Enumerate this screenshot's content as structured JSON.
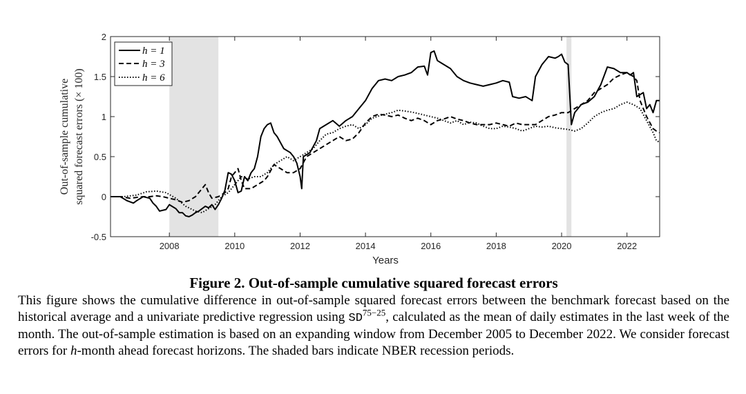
{
  "chart_data": {
    "type": "line",
    "title": "",
    "xlabel": "Years",
    "ylabel_line1": "Out-of-sample cumulative",
    "ylabel_line2": "squared forecast errors (× 100)",
    "xlim": [
      2006.2,
      2023.0
    ],
    "ylim": [
      -0.5,
      2.0
    ],
    "xticks": [
      2008,
      2010,
      2012,
      2014,
      2016,
      2018,
      2020,
      2022
    ],
    "yticks": [
      -0.5,
      0,
      0.5,
      1,
      1.5,
      2
    ],
    "ytick_labels": [
      "-0.5",
      "0",
      "0.5",
      "1",
      "1.5",
      "2"
    ],
    "legend_position": "top-left",
    "recessions": [
      [
        2008.0,
        2009.5
      ],
      [
        2020.15,
        2020.3
      ]
    ],
    "series": [
      {
        "name": "h = 1",
        "style": "solid",
        "points": [
          [
            2006.2,
            0.0
          ],
          [
            2006.5,
            0.0
          ],
          [
            2006.7,
            -0.05
          ],
          [
            2006.9,
            -0.08
          ],
          [
            2007.0,
            -0.05
          ],
          [
            2007.2,
            0.0
          ],
          [
            2007.4,
            -0.02
          ],
          [
            2007.5,
            -0.08
          ],
          [
            2007.6,
            -0.12
          ],
          [
            2007.7,
            -0.18
          ],
          [
            2007.9,
            -0.16
          ],
          [
            2008.0,
            -0.1
          ],
          [
            2008.2,
            -0.15
          ],
          [
            2008.3,
            -0.2
          ],
          [
            2008.4,
            -0.2
          ],
          [
            2008.5,
            -0.24
          ],
          [
            2008.6,
            -0.25
          ],
          [
            2008.7,
            -0.23
          ],
          [
            2008.8,
            -0.2
          ],
          [
            2008.9,
            -0.18
          ],
          [
            2009.0,
            -0.15
          ],
          [
            2009.1,
            -0.12
          ],
          [
            2009.2,
            -0.14
          ],
          [
            2009.3,
            -0.1
          ],
          [
            2009.4,
            -0.16
          ],
          [
            2009.5,
            -0.1
          ],
          [
            2009.6,
            -0.02
          ],
          [
            2009.7,
            0.08
          ],
          [
            2009.8,
            0.3
          ],
          [
            2009.9,
            0.28
          ],
          [
            2010.0,
            0.2
          ],
          [
            2010.1,
            0.05
          ],
          [
            2010.2,
            0.07
          ],
          [
            2010.3,
            0.25
          ],
          [
            2010.4,
            0.2
          ],
          [
            2010.5,
            0.3
          ],
          [
            2010.6,
            0.35
          ],
          [
            2010.7,
            0.5
          ],
          [
            2010.8,
            0.75
          ],
          [
            2010.9,
            0.85
          ],
          [
            2011.0,
            0.9
          ],
          [
            2011.1,
            0.92
          ],
          [
            2011.2,
            0.8
          ],
          [
            2011.3,
            0.75
          ],
          [
            2011.5,
            0.6
          ],
          [
            2011.7,
            0.55
          ],
          [
            2011.8,
            0.5
          ],
          [
            2011.9,
            0.42
          ],
          [
            2012.0,
            0.25
          ],
          [
            2012.05,
            0.1
          ],
          [
            2012.1,
            0.5
          ],
          [
            2012.3,
            0.55
          ],
          [
            2012.5,
            0.7
          ],
          [
            2012.6,
            0.85
          ],
          [
            2012.8,
            0.9
          ],
          [
            2013.0,
            0.95
          ],
          [
            2013.2,
            0.88
          ],
          [
            2013.4,
            0.95
          ],
          [
            2013.6,
            1.0
          ],
          [
            2013.8,
            1.1
          ],
          [
            2014.0,
            1.2
          ],
          [
            2014.2,
            1.35
          ],
          [
            2014.4,
            1.45
          ],
          [
            2014.6,
            1.47
          ],
          [
            2014.8,
            1.45
          ],
          [
            2015.0,
            1.5
          ],
          [
            2015.2,
            1.52
          ],
          [
            2015.4,
            1.55
          ],
          [
            2015.6,
            1.62
          ],
          [
            2015.8,
            1.63
          ],
          [
            2015.9,
            1.52
          ],
          [
            2016.0,
            1.8
          ],
          [
            2016.1,
            1.82
          ],
          [
            2016.2,
            1.7
          ],
          [
            2016.4,
            1.65
          ],
          [
            2016.6,
            1.6
          ],
          [
            2016.8,
            1.5
          ],
          [
            2017.0,
            1.45
          ],
          [
            2017.2,
            1.42
          ],
          [
            2017.4,
            1.4
          ],
          [
            2017.6,
            1.38
          ],
          [
            2017.8,
            1.4
          ],
          [
            2018.0,
            1.42
          ],
          [
            2018.2,
            1.45
          ],
          [
            2018.4,
            1.43
          ],
          [
            2018.5,
            1.25
          ],
          [
            2018.7,
            1.23
          ],
          [
            2018.9,
            1.25
          ],
          [
            2019.1,
            1.2
          ],
          [
            2019.2,
            1.5
          ],
          [
            2019.4,
            1.65
          ],
          [
            2019.6,
            1.75
          ],
          [
            2019.8,
            1.73
          ],
          [
            2019.9,
            1.75
          ],
          [
            2020.0,
            1.78
          ],
          [
            2020.1,
            1.68
          ],
          [
            2020.2,
            1.65
          ],
          [
            2020.3,
            0.9
          ],
          [
            2020.4,
            1.05
          ],
          [
            2020.5,
            1.1
          ],
          [
            2020.6,
            1.15
          ],
          [
            2020.8,
            1.18
          ],
          [
            2021.0,
            1.25
          ],
          [
            2021.2,
            1.4
          ],
          [
            2021.4,
            1.62
          ],
          [
            2021.6,
            1.6
          ],
          [
            2021.8,
            1.55
          ],
          [
            2022.0,
            1.55
          ],
          [
            2022.1,
            1.52
          ],
          [
            2022.2,
            1.55
          ],
          [
            2022.3,
            1.25
          ],
          [
            2022.5,
            1.3
          ],
          [
            2022.6,
            1.1
          ],
          [
            2022.7,
            1.15
          ],
          [
            2022.8,
            1.05
          ],
          [
            2022.9,
            1.2
          ],
          [
            2023.0,
            1.2
          ]
        ]
      },
      {
        "name": "h = 3",
        "style": "dashed",
        "points": [
          [
            2006.2,
            0.0
          ],
          [
            2006.5,
            0.0
          ],
          [
            2006.8,
            -0.02
          ],
          [
            2007.2,
            0.0
          ],
          [
            2007.4,
            0.0
          ],
          [
            2007.6,
            0.01
          ],
          [
            2007.8,
            0.0
          ],
          [
            2008.0,
            -0.02
          ],
          [
            2008.2,
            -0.04
          ],
          [
            2008.4,
            -0.07
          ],
          [
            2008.6,
            -0.05
          ],
          [
            2008.8,
            0.0
          ],
          [
            2009.0,
            0.1
          ],
          [
            2009.1,
            0.15
          ],
          [
            2009.2,
            0.05
          ],
          [
            2009.3,
            -0.02
          ],
          [
            2009.5,
            0.0
          ],
          [
            2009.7,
            0.05
          ],
          [
            2009.8,
            0.1
          ],
          [
            2009.9,
            0.25
          ],
          [
            2010.0,
            0.3
          ],
          [
            2010.1,
            0.35
          ],
          [
            2010.2,
            0.2
          ],
          [
            2010.3,
            0.1
          ],
          [
            2010.5,
            0.1
          ],
          [
            2010.7,
            0.15
          ],
          [
            2010.9,
            0.2
          ],
          [
            2011.0,
            0.25
          ],
          [
            2011.2,
            0.4
          ],
          [
            2011.4,
            0.35
          ],
          [
            2011.6,
            0.3
          ],
          [
            2011.8,
            0.3
          ],
          [
            2012.0,
            0.35
          ],
          [
            2012.2,
            0.5
          ],
          [
            2012.4,
            0.55
          ],
          [
            2012.6,
            0.6
          ],
          [
            2012.8,
            0.65
          ],
          [
            2013.0,
            0.7
          ],
          [
            2013.2,
            0.75
          ],
          [
            2013.4,
            0.7
          ],
          [
            2013.6,
            0.72
          ],
          [
            2013.8,
            0.8
          ],
          [
            2014.0,
            0.92
          ],
          [
            2014.2,
            1.0
          ],
          [
            2014.4,
            1.03
          ],
          [
            2014.6,
            1.02
          ],
          [
            2014.8,
            1.0
          ],
          [
            2015.0,
            1.02
          ],
          [
            2015.2,
            0.98
          ],
          [
            2015.4,
            0.95
          ],
          [
            2015.6,
            0.98
          ],
          [
            2015.8,
            0.95
          ],
          [
            2016.0,
            0.9
          ],
          [
            2016.2,
            0.95
          ],
          [
            2016.4,
            0.97
          ],
          [
            2016.6,
            1.0
          ],
          [
            2016.8,
            0.97
          ],
          [
            2017.0,
            0.95
          ],
          [
            2017.2,
            0.92
          ],
          [
            2017.4,
            0.9
          ],
          [
            2017.6,
            0.9
          ],
          [
            2017.8,
            0.9
          ],
          [
            2018.0,
            0.92
          ],
          [
            2018.2,
            0.9
          ],
          [
            2018.4,
            0.88
          ],
          [
            2018.6,
            0.92
          ],
          [
            2018.8,
            0.9
          ],
          [
            2019.0,
            0.9
          ],
          [
            2019.2,
            0.9
          ],
          [
            2019.4,
            0.95
          ],
          [
            2019.6,
            1.0
          ],
          [
            2019.8,
            1.02
          ],
          [
            2020.0,
            1.05
          ],
          [
            2020.2,
            1.05
          ],
          [
            2020.4,
            1.1
          ],
          [
            2020.6,
            1.15
          ],
          [
            2020.8,
            1.2
          ],
          [
            2021.0,
            1.3
          ],
          [
            2021.2,
            1.35
          ],
          [
            2021.4,
            1.4
          ],
          [
            2021.6,
            1.48
          ],
          [
            2021.8,
            1.52
          ],
          [
            2022.0,
            1.55
          ],
          [
            2022.2,
            1.5
          ],
          [
            2022.3,
            1.45
          ],
          [
            2022.4,
            1.2
          ],
          [
            2022.6,
            1.0
          ],
          [
            2022.8,
            0.85
          ],
          [
            2022.9,
            0.82
          ],
          [
            2023.0,
            0.8
          ]
        ]
      },
      {
        "name": "h = 6",
        "style": "dotted",
        "points": [
          [
            2006.2,
            0.0
          ],
          [
            2006.6,
            0.0
          ],
          [
            2007.0,
            0.02
          ],
          [
            2007.3,
            0.06
          ],
          [
            2007.6,
            0.07
          ],
          [
            2007.9,
            0.05
          ],
          [
            2008.2,
            -0.02
          ],
          [
            2008.5,
            -0.12
          ],
          [
            2008.8,
            -0.18
          ],
          [
            2009.0,
            -0.2
          ],
          [
            2009.2,
            -0.15
          ],
          [
            2009.4,
            -0.1
          ],
          [
            2009.6,
            0.0
          ],
          [
            2009.8,
            0.05
          ],
          [
            2010.0,
            0.15
          ],
          [
            2010.2,
            0.25
          ],
          [
            2010.4,
            0.22
          ],
          [
            2010.6,
            0.25
          ],
          [
            2010.8,
            0.25
          ],
          [
            2011.0,
            0.3
          ],
          [
            2011.2,
            0.4
          ],
          [
            2011.4,
            0.45
          ],
          [
            2011.6,
            0.5
          ],
          [
            2011.8,
            0.45
          ],
          [
            2012.0,
            0.5
          ],
          [
            2012.2,
            0.55
          ],
          [
            2012.4,
            0.6
          ],
          [
            2012.6,
            0.7
          ],
          [
            2012.8,
            0.78
          ],
          [
            2013.0,
            0.8
          ],
          [
            2013.2,
            0.85
          ],
          [
            2013.4,
            0.88
          ],
          [
            2013.6,
            0.9
          ],
          [
            2013.8,
            0.85
          ],
          [
            2014.0,
            0.9
          ],
          [
            2014.2,
            0.98
          ],
          [
            2014.5,
            1.02
          ],
          [
            2014.8,
            1.05
          ],
          [
            2015.0,
            1.08
          ],
          [
            2015.2,
            1.07
          ],
          [
            2015.5,
            1.05
          ],
          [
            2015.8,
            1.02
          ],
          [
            2016.0,
            1.0
          ],
          [
            2016.2,
            0.98
          ],
          [
            2016.4,
            0.95
          ],
          [
            2016.6,
            0.92
          ],
          [
            2016.8,
            0.95
          ],
          [
            2017.0,
            0.9
          ],
          [
            2017.2,
            0.93
          ],
          [
            2017.4,
            0.92
          ],
          [
            2017.6,
            0.88
          ],
          [
            2017.8,
            0.85
          ],
          [
            2018.0,
            0.85
          ],
          [
            2018.2,
            0.88
          ],
          [
            2018.4,
            0.87
          ],
          [
            2018.6,
            0.85
          ],
          [
            2018.8,
            0.82
          ],
          [
            2019.0,
            0.85
          ],
          [
            2019.2,
            0.88
          ],
          [
            2019.4,
            0.87
          ],
          [
            2019.6,
            0.88
          ],
          [
            2019.8,
            0.86
          ],
          [
            2020.0,
            0.85
          ],
          [
            2020.2,
            0.84
          ],
          [
            2020.4,
            0.82
          ],
          [
            2020.6,
            0.85
          ],
          [
            2020.8,
            0.92
          ],
          [
            2021.0,
            1.0
          ],
          [
            2021.2,
            1.05
          ],
          [
            2021.4,
            1.08
          ],
          [
            2021.6,
            1.1
          ],
          [
            2021.8,
            1.15
          ],
          [
            2022.0,
            1.18
          ],
          [
            2022.2,
            1.15
          ],
          [
            2022.4,
            1.1
          ],
          [
            2022.6,
            0.95
          ],
          [
            2022.8,
            0.8
          ],
          [
            2022.9,
            0.7
          ],
          [
            2023.0,
            0.68
          ]
        ]
      }
    ]
  },
  "caption": {
    "title": "Figure 2. Out-of-sample cumulative squared forecast errors",
    "text_part1": "This figure shows the cumulative difference in out-of-sample squared forecast errors between the benchmark forecast based on the historical average and a univariate predictive regression using ",
    "sd_symbol": "SD",
    "sd_superscript": "75−25",
    "text_part2": ", calculated as the mean of daily estimates in the last week of the month. The out-of-sample estimation is based on an expanding window from December 2005 to December 2022. We consider forecast errors for ",
    "h_symbol": "h",
    "text_part3": "-month ahead forecast horizons. The shaded bars indicate NBER recession periods."
  }
}
